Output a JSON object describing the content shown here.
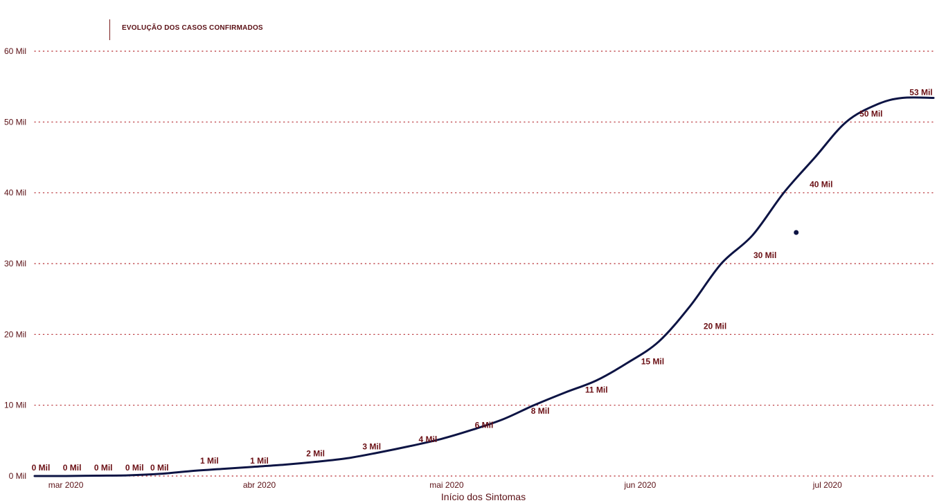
{
  "chart_data": {
    "type": "line",
    "title": "EVOLUÇÃO DOS CASOS CONFIRMADOS",
    "xlabel": "Início dos Sintomas",
    "ylabel": "",
    "ylim": [
      0,
      60
    ],
    "yunit": "Mil",
    "y_ticks": [
      "0 Mil",
      "10 Mil",
      "20 Mil",
      "30 Mil",
      "40 Mil",
      "50 Mil",
      "60 Mil"
    ],
    "x_range": [
      "2020-02-25",
      "2020-07-18"
    ],
    "x_ticks": [
      {
        "date": "2020-03-01",
        "label": "mar 2020"
      },
      {
        "date": "2020-04-01",
        "label": "abr 2020"
      },
      {
        "date": "2020-05-01",
        "label": "mai 2020"
      },
      {
        "date": "2020-06-01",
        "label": "jun 2020"
      },
      {
        "date": "2020-07-01",
        "label": "jul 2020"
      }
    ],
    "grid": true,
    "line_color": "#0d1444",
    "grid_color": "#b3262b",
    "series": [
      {
        "x": [
          "2020-02-25",
          "2020-03-01",
          "2020-03-06",
          "2020-03-11",
          "2020-03-16",
          "2020-03-21",
          "2020-03-26",
          "2020-03-31",
          "2020-04-05",
          "2020-04-10",
          "2020-04-15",
          "2020-04-20",
          "2020-04-25",
          "2020-04-30",
          "2020-05-05",
          "2020-05-10",
          "2020-05-15",
          "2020-05-20",
          "2020-05-25",
          "2020-05-30",
          "2020-06-04",
          "2020-06-09",
          "2020-06-14",
          "2020-06-19",
          "2020-06-24",
          "2020-06-29",
          "2020-07-04",
          "2020-07-09",
          "2020-07-13",
          "2020-07-18"
        ],
        "y": [
          0,
          0,
          0.05,
          0.1,
          0.3,
          0.7,
          1.0,
          1.3,
          1.6,
          2.0,
          2.5,
          3.3,
          4.2,
          5.2,
          6.5,
          8.0,
          10.0,
          11.8,
          13.5,
          16.0,
          19.0,
          24.0,
          30.0,
          34.0,
          40.0,
          45.0,
          50.0,
          52.5,
          53.4,
          53.4
        ]
      }
    ],
    "data_labels": [
      {
        "date": "2020-02-26",
        "y": 0,
        "label": "0 Mil"
      },
      {
        "date": "2020-03-02",
        "y": 0,
        "label": "0 Mil"
      },
      {
        "date": "2020-03-07",
        "y": 0,
        "label": "0 Mil"
      },
      {
        "date": "2020-03-12",
        "y": 0,
        "label": "0 Mil"
      },
      {
        "date": "2020-03-16",
        "y": 0,
        "label": "0 Mil"
      },
      {
        "date": "2020-03-24",
        "y": 1,
        "label": "1 Mil"
      },
      {
        "date": "2020-04-01",
        "y": 1,
        "label": "1 Mil"
      },
      {
        "date": "2020-04-10",
        "y": 2,
        "label": "2 Mil"
      },
      {
        "date": "2020-04-19",
        "y": 3,
        "label": "3 Mil"
      },
      {
        "date": "2020-04-28",
        "y": 4,
        "label": "4 Mil"
      },
      {
        "date": "2020-05-07",
        "y": 6,
        "label": "6 Mil"
      },
      {
        "date": "2020-05-16",
        "y": 8,
        "label": "8 Mil"
      },
      {
        "date": "2020-05-25",
        "y": 11,
        "label": "11 Mil"
      },
      {
        "date": "2020-06-03",
        "y": 15,
        "label": "15 Mil"
      },
      {
        "date": "2020-06-13",
        "y": 20,
        "label": "20 Mil"
      },
      {
        "date": "2020-06-21",
        "y": 30,
        "label": "30 Mil"
      },
      {
        "date": "2020-06-30",
        "y": 40,
        "label": "40 Mil"
      },
      {
        "date": "2020-07-08",
        "y": 50,
        "label": "50 Mil"
      },
      {
        "date": "2020-07-16",
        "y": 53,
        "label": "53 Mil"
      }
    ],
    "highlight_point": {
      "date": "2020-06-26",
      "y": 34.4
    }
  }
}
